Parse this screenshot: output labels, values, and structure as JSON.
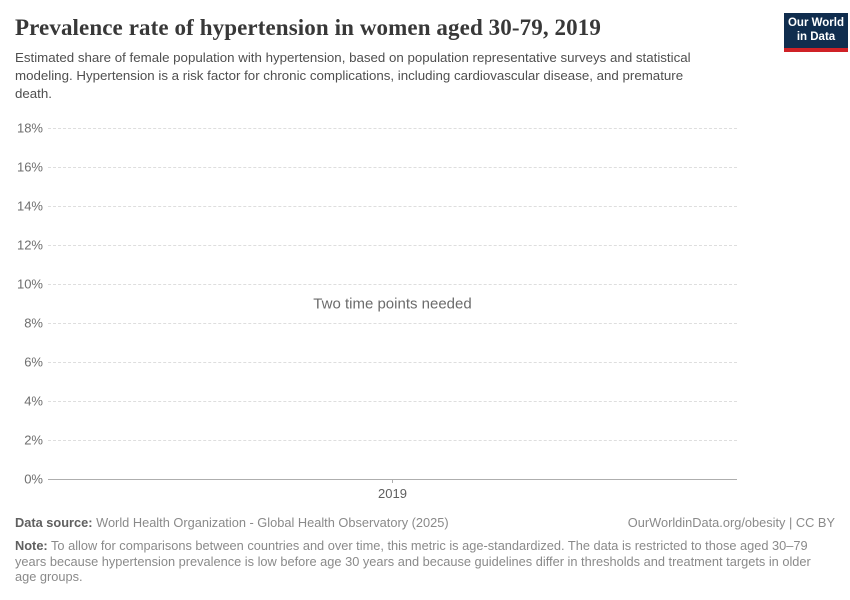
{
  "header": {
    "title": "Prevalence rate of hypertension in women aged 30-79, 2019",
    "subtitle": "Estimated share of female population with hypertension, based on population representative surveys and statistical modeling. Hypertension is a risk factor for chronic complications, including cardiovascular disease, and premature death.",
    "logo": {
      "line1": "Our World",
      "line2": "in Data",
      "background_color": "#102d4e",
      "accent_color": "#cf2126"
    }
  },
  "chart_data": {
    "type": "line",
    "title": "Prevalence rate of hypertension in women aged 30-79, 2019",
    "series": [],
    "empty_state_message": "Two time points needed",
    "x_ticks": [
      "2019"
    ],
    "y_ticks": [
      "0%",
      "2%",
      "4%",
      "6%",
      "8%",
      "10%",
      "12%",
      "14%",
      "16%",
      "18%"
    ],
    "ylim": [
      0,
      18
    ],
    "xlabel": "",
    "ylabel": "",
    "grid": "horizontal dashed gridlines, solid zero baseline",
    "legend_position": "none"
  },
  "footer": {
    "data_source_label": "Data source:",
    "data_source": "World Health Organization - Global Health Observatory (2025)",
    "attribution": "OurWorldinData.org/obesity | CC BY",
    "note_label": "Note:",
    "note": "To allow for comparisons between countries and over time, this metric is age-standardized. The data is restricted to those aged 30–79 years because hypertension prevalence is low before age 30 years and because guidelines differ in thresholds and treatment targets in older age groups."
  }
}
